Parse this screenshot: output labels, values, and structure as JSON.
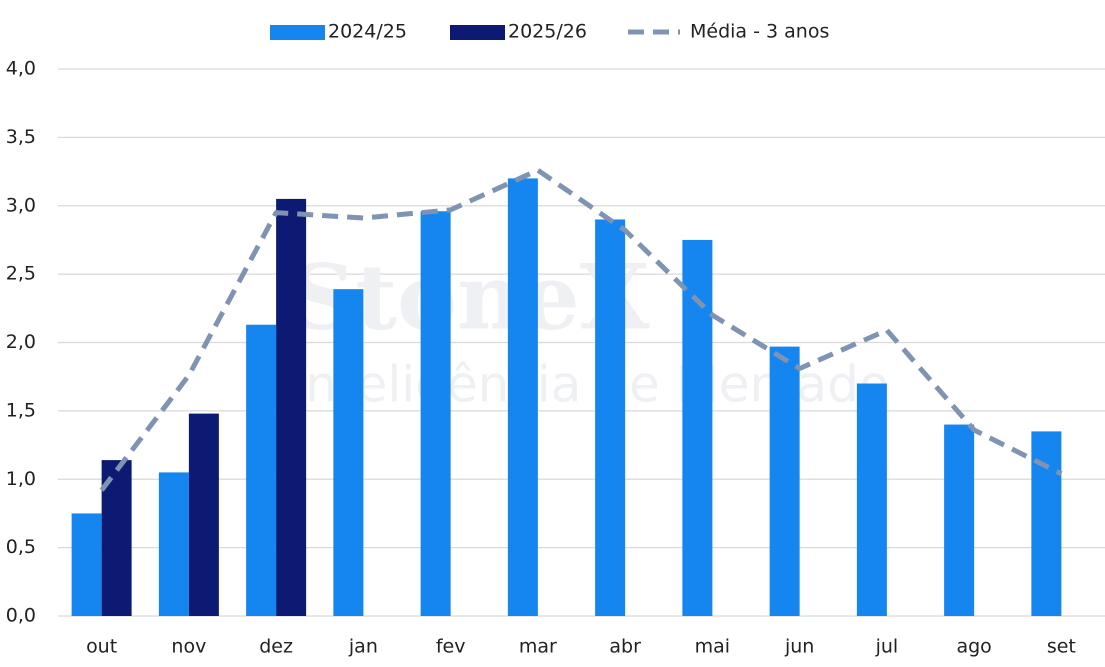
{
  "chart_data": {
    "type": "bar",
    "categories": [
      "out",
      "nov",
      "dez",
      "jan",
      "fev",
      "mar",
      "abr",
      "mai",
      "jun",
      "jul",
      "ago",
      "set"
    ],
    "series": [
      {
        "name": "2024/25",
        "color": "#1585f0",
        "type": "bar",
        "values": [
          0.75,
          1.05,
          2.13,
          2.39,
          2.96,
          3.2,
          2.9,
          2.75,
          1.97,
          1.7,
          1.4,
          1.35
        ]
      },
      {
        "name": "2025/26",
        "color": "#0d1a73",
        "type": "bar",
        "values": [
          1.14,
          1.48,
          3.05,
          null,
          null,
          null,
          null,
          null,
          null,
          null,
          null,
          null
        ]
      },
      {
        "name": "Média - 3 anos",
        "color": "#7f93b2",
        "type": "line",
        "dashed": true,
        "values": [
          0.92,
          1.76,
          2.95,
          2.91,
          2.97,
          3.26,
          2.82,
          2.2,
          1.81,
          2.09,
          1.36,
          1.04
        ]
      }
    ],
    "ylim": [
      0,
      4
    ],
    "yticks": [
      {
        "value": 0,
        "label": "0,0"
      },
      {
        "value": 0.5,
        "label": "0,5"
      },
      {
        "value": 1,
        "label": "1,0"
      },
      {
        "value": 1.5,
        "label": "1,5"
      },
      {
        "value": 2,
        "label": "2,0"
      },
      {
        "value": 2.5,
        "label": "2,5"
      },
      {
        "value": 3,
        "label": "3,0"
      },
      {
        "value": 3.5,
        "label": "3,5"
      },
      {
        "value": 4,
        "label": "4,0"
      }
    ],
    "grid": true,
    "legend": "top",
    "watermark": {
      "brand": "StoneX",
      "tagline": "Inteligência de Mercado"
    }
  }
}
